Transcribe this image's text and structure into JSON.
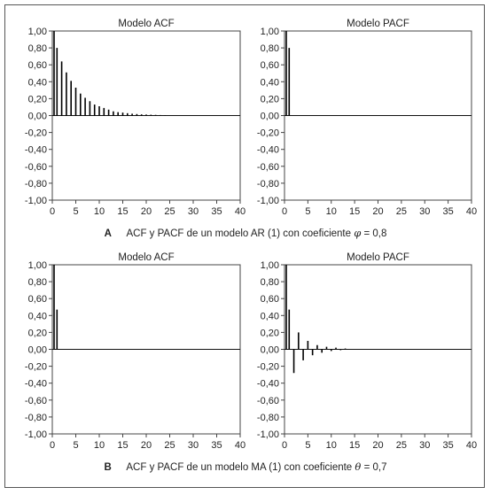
{
  "captions": [
    {
      "letter": "A",
      "text": "ACF y PACF de un modelo AR (1) con coeficiente",
      "symbol": "φ",
      "value": "= 0,8"
    },
    {
      "letter": "B",
      "text": "ACF y PACF de un modelo MA (1) con coeficiente",
      "symbol": "θ",
      "value": "= 0,7"
    }
  ],
  "chart_data": [
    {
      "type": "bar",
      "title": "Modelo ACF",
      "xlabel": "",
      "ylabel": "",
      "xlim": [
        0,
        40
      ],
      "ylim": [
        -1.0,
        1.0
      ],
      "xticks": [
        "0",
        "5",
        "10",
        "15",
        "20",
        "25",
        "30",
        "35",
        "40"
      ],
      "yticks": [
        "1,00",
        "0,80",
        "0,60",
        "0,40",
        "0,20",
        "0,00",
        "-0,20",
        "-0,40",
        "-0,60",
        "-0,80",
        "-1,00"
      ],
      "grid": false,
      "x": [
        0,
        1,
        2,
        3,
        4,
        5,
        6,
        7,
        8,
        9,
        10,
        11,
        12,
        13,
        14,
        15,
        16,
        17,
        18,
        19,
        20,
        21,
        22,
        23,
        24
      ],
      "values": [
        1.0,
        0.8,
        0.64,
        0.51,
        0.41,
        0.33,
        0.26,
        0.21,
        0.17,
        0.13,
        0.11,
        0.09,
        0.07,
        0.05,
        0.04,
        0.035,
        0.028,
        0.022,
        0.018,
        0.014,
        0.012,
        0.01,
        0.008,
        0.006,
        0.005
      ]
    },
    {
      "type": "bar",
      "title": "Modelo PACF",
      "xlabel": "",
      "ylabel": "",
      "xlim": [
        0,
        40
      ],
      "ylim": [
        -1.0,
        1.0
      ],
      "xticks": [
        "0",
        "5",
        "10",
        "15",
        "20",
        "25",
        "30",
        "35",
        "40"
      ],
      "yticks": [
        "1,00",
        "0,80",
        "0,60",
        "0,40",
        "0,20",
        "0,00",
        "-0,20",
        "-0,40",
        "-0,60",
        "-0,80",
        "-1,00"
      ],
      "grid": false,
      "x": [
        0,
        1
      ],
      "values": [
        1.0,
        0.8
      ]
    },
    {
      "type": "bar",
      "title": "Modelo ACF",
      "xlabel": "",
      "ylabel": "",
      "xlim": [
        0,
        40
      ],
      "ylim": [
        -1.0,
        1.0
      ],
      "xticks": [
        "0",
        "5",
        "10",
        "15",
        "20",
        "25",
        "30",
        "35",
        "40"
      ],
      "yticks": [
        "1,00",
        "0,80",
        "0,60",
        "0,40",
        "0,20",
        "0,00",
        "-0,20",
        "-0,40",
        "-0,60",
        "-0,80",
        "-1,00"
      ],
      "grid": false,
      "x": [
        0,
        1
      ],
      "values": [
        1.0,
        0.47
      ]
    },
    {
      "type": "bar",
      "title": "Modelo PACF",
      "xlabel": "",
      "ylabel": "",
      "xlim": [
        0,
        40
      ],
      "ylim": [
        -1.0,
        1.0
      ],
      "xticks": [
        "0",
        "5",
        "10",
        "15",
        "20",
        "25",
        "30",
        "35",
        "40"
      ],
      "yticks": [
        "1,00",
        "0,80",
        "0,60",
        "0,40",
        "0,20",
        "0,00",
        "-0,20",
        "-0,40",
        "-0,60",
        "-0,80",
        "-1,00"
      ],
      "grid": false,
      "x": [
        0,
        1,
        2,
        3,
        4,
        5,
        6,
        7,
        8,
        9,
        10,
        11,
        12,
        13
      ],
      "values": [
        1.0,
        0.47,
        -0.28,
        0.2,
        -0.13,
        0.1,
        -0.07,
        0.05,
        -0.04,
        0.03,
        -0.02,
        0.02,
        -0.01,
        0.01
      ]
    }
  ]
}
